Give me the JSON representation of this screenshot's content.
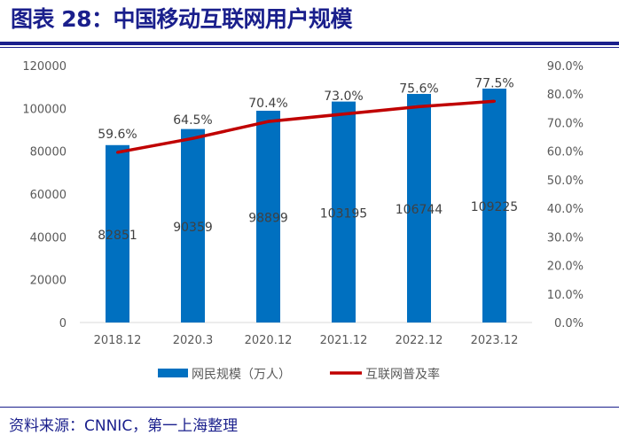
{
  "header": {
    "title": "图表 28：中国移动互联网用户规模"
  },
  "footer": {
    "source": "资料来源：CNNIC，第一上海整理"
  },
  "chart_data": {
    "type": "bar+line",
    "categories": [
      "2018.12",
      "2020.3",
      "2020.12",
      "2021.12",
      "2022.12",
      "2023.12"
    ],
    "series": [
      {
        "name": "网民规模（万人）",
        "type": "bar",
        "axis": "left",
        "color": "#0070C0",
        "values": [
          82851,
          90359,
          98899,
          103195,
          106744,
          109225
        ],
        "labels": [
          "82851",
          "90359",
          "98899",
          "103195",
          "106744",
          "109225"
        ]
      },
      {
        "name": "互联网普及率",
        "type": "line",
        "axis": "right",
        "color": "#C00000",
        "values": [
          59.6,
          64.5,
          70.4,
          73.0,
          75.6,
          77.5
        ],
        "labels": [
          "59.6%",
          "64.5%",
          "70.4%",
          "73.0%",
          "75.6%",
          "77.5%"
        ]
      }
    ],
    "ylim_left": [
      0,
      120000
    ],
    "yticks_left": [
      "0",
      "20000",
      "40000",
      "60000",
      "80000",
      "100000",
      "120000"
    ],
    "ylim_right": [
      0,
      90
    ],
    "yticks_right": [
      "0.0%",
      "10.0%",
      "20.0%",
      "30.0%",
      "40.0%",
      "50.0%",
      "60.0%",
      "70.0%",
      "80.0%",
      "90.0%"
    ],
    "grid": false,
    "legend": "bottom"
  }
}
